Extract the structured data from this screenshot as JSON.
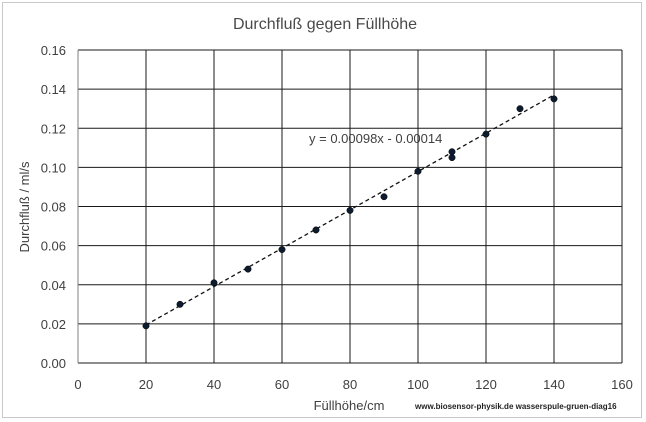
{
  "chart_data": {
    "type": "scatter",
    "title": "Durchfluß gegen Füllhöhe",
    "xlabel": "Füllhöhe/cm",
    "ylabel": "Durchfluß  /  ml/s",
    "xlim": [
      0,
      160
    ],
    "ylim": [
      0,
      0.16
    ],
    "x_ticks": [
      "0",
      "20",
      "40",
      "60",
      "80",
      "100",
      "120",
      "140",
      "160"
    ],
    "y_ticks": [
      "0.00",
      "0.02",
      "0.04",
      "0.06",
      "0.08",
      "0.10",
      "0.12",
      "0.14",
      "0.16"
    ],
    "grid": true,
    "points": [
      {
        "x": 20,
        "y": 0.019
      },
      {
        "x": 30,
        "y": 0.03
      },
      {
        "x": 40,
        "y": 0.041
      },
      {
        "x": 50,
        "y": 0.048
      },
      {
        "x": 60,
        "y": 0.058
      },
      {
        "x": 70,
        "y": 0.068
      },
      {
        "x": 80,
        "y": 0.078
      },
      {
        "x": 90,
        "y": 0.085
      },
      {
        "x": 100,
        "y": 0.098
      },
      {
        "x": 110,
        "y": 0.105
      },
      {
        "x": 110,
        "y": 0.108
      },
      {
        "x": 120,
        "y": 0.117
      },
      {
        "x": 130,
        "y": 0.13
      },
      {
        "x": 140,
        "y": 0.135
      }
    ],
    "trendline": {
      "slope": 0.00098,
      "intercept": -0.00014,
      "x_range": [
        20,
        140
      ],
      "style": "dashed"
    },
    "trendline_label": "y = 0.00098x - 0.00014",
    "point_color": "#0d1b2e",
    "credit": "www.biosensor-physik.de  wasserspule-gruen-diag16"
  }
}
